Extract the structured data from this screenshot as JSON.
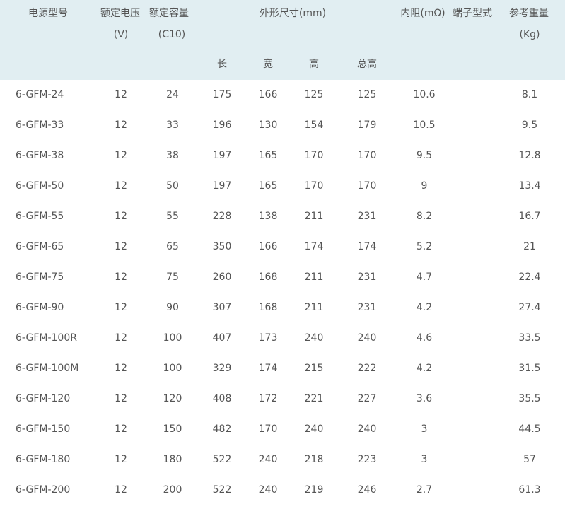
{
  "header": {
    "model": "电源型号",
    "voltage": "额定电压",
    "voltage_unit": "(V)",
    "capacity": "额定容量",
    "capacity_unit": "(C10)",
    "dimensions": "外形尺寸(mm)",
    "length": "长",
    "width": "宽",
    "height": "高",
    "total_height": "总高",
    "resistance": "内阻(mΩ)",
    "terminal": "端子型式",
    "weight": "参考重量",
    "weight_unit": "(Kg)"
  },
  "rows": [
    [
      "6-GFM-24",
      "12",
      "24",
      "175",
      "166",
      "125",
      "125",
      "10.6",
      "",
      "8.1"
    ],
    [
      "6-GFM-33",
      "12",
      "33",
      "196",
      "130",
      "154",
      "179",
      "10.5",
      "",
      "9.5"
    ],
    [
      "6-GFM-38",
      "12",
      "38",
      "197",
      "165",
      "170",
      "170",
      "9.5",
      "",
      "12.8"
    ],
    [
      "6-GFM-50",
      "12",
      "50",
      "197",
      "165",
      "170",
      "170",
      "9",
      "",
      "13.4"
    ],
    [
      "6-GFM-55",
      "12",
      "55",
      "228",
      "138",
      "211",
      "231",
      "8.2",
      "",
      "16.7"
    ],
    [
      "6-GFM-65",
      "12",
      "65",
      "350",
      "166",
      "174",
      "174",
      "5.2",
      "",
      "21"
    ],
    [
      "6-GFM-75",
      "12",
      "75",
      "260",
      "168",
      "211",
      "231",
      "4.7",
      "",
      "22.4"
    ],
    [
      "6-GFM-90",
      "12",
      "90",
      "307",
      "168",
      "211",
      "231",
      "4.2",
      "",
      "27.4"
    ],
    [
      "6-GFM-100R",
      "12",
      "100",
      "407",
      "173",
      "240",
      "240",
      "4.6",
      "",
      "33.5"
    ],
    [
      "6-GFM-100M",
      "12",
      "100",
      "329",
      "174",
      "215",
      "222",
      "4.2",
      "",
      "31.5"
    ],
    [
      "6-GFM-120",
      "12",
      "120",
      "408",
      "172",
      "221",
      "227",
      "3.6",
      "",
      "35.5"
    ],
    [
      "6-GFM-150",
      "12",
      "150",
      "482",
      "170",
      "240",
      "240",
      "3",
      "",
      "44.5"
    ],
    [
      "6-GFM-180",
      "12",
      "180",
      "522",
      "240",
      "218",
      "223",
      "3",
      "",
      "57"
    ],
    [
      "6-GFM-200",
      "12",
      "200",
      "522",
      "240",
      "219",
      "246",
      "2.7",
      "",
      "61.3"
    ]
  ]
}
